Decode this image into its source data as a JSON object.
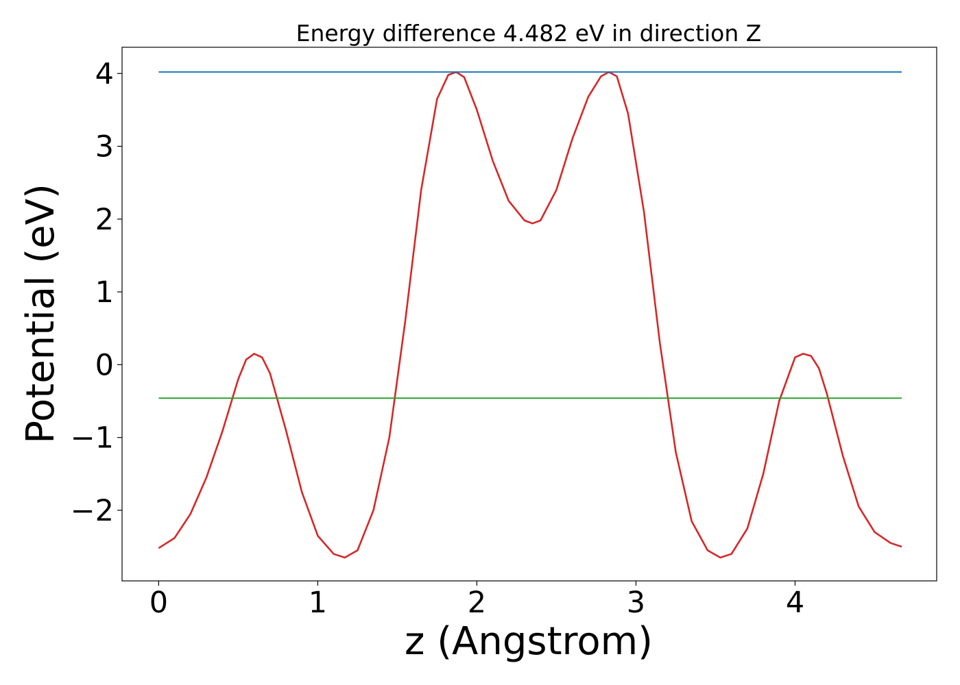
{
  "chart_data": {
    "type": "line",
    "title": "Energy difference 4.482 eV in direction Z",
    "xlabel": "z (Angstrom)",
    "ylabel": "Potential (eV)",
    "xlim": [
      -0.23,
      4.89
    ],
    "ylim": [
      -2.97,
      4.36
    ],
    "xticks": [
      0,
      1,
      2,
      3,
      4
    ],
    "xtick_labels": [
      "0",
      "1",
      "2",
      "3",
      "4"
    ],
    "yticks": [
      -2,
      -1,
      0,
      1,
      2,
      3,
      4
    ],
    "ytick_labels": [
      "−2",
      "−1",
      "0",
      "1",
      "2",
      "3",
      "4"
    ],
    "grid": false,
    "series": [
      {
        "color": "#d62728",
        "x": [
          0.0,
          0.1,
          0.2,
          0.3,
          0.4,
          0.5,
          0.55,
          0.6,
          0.65,
          0.7,
          0.8,
          0.9,
          1.0,
          1.1,
          1.17,
          1.25,
          1.35,
          1.45,
          1.55,
          1.65,
          1.75,
          1.82,
          1.87,
          1.92,
          2.0,
          2.1,
          2.2,
          2.3,
          2.35,
          2.4,
          2.5,
          2.6,
          2.7,
          2.78,
          2.83,
          2.88,
          2.95,
          3.05,
          3.15,
          3.25,
          3.35,
          3.45,
          3.53,
          3.6,
          3.7,
          3.8,
          3.9,
          4.0,
          4.05,
          4.1,
          4.15,
          4.2,
          4.3,
          4.4,
          4.5,
          4.6,
          4.67
        ],
        "y": [
          -2.52,
          -2.38,
          -2.05,
          -1.55,
          -0.92,
          -0.2,
          0.07,
          0.15,
          0.1,
          -0.12,
          -0.9,
          -1.75,
          -2.35,
          -2.6,
          -2.65,
          -2.55,
          -2.0,
          -1.0,
          0.6,
          2.4,
          3.65,
          3.98,
          4.02,
          3.95,
          3.5,
          2.8,
          2.25,
          1.98,
          1.94,
          1.98,
          2.4,
          3.1,
          3.68,
          3.96,
          4.02,
          3.96,
          3.45,
          2.1,
          0.3,
          -1.2,
          -2.15,
          -2.55,
          -2.65,
          -2.6,
          -2.25,
          -1.5,
          -0.5,
          0.1,
          0.15,
          0.12,
          -0.05,
          -0.4,
          -1.25,
          -1.95,
          -2.3,
          -2.45,
          -2.5
        ]
      },
      {
        "color": "#1f77b4",
        "x": [
          0.0,
          4.67
        ],
        "y": [
          4.02,
          4.02
        ]
      },
      {
        "color": "#2ca02c",
        "x": [
          0.0,
          4.67
        ],
        "y": [
          -0.46,
          -0.46
        ]
      }
    ]
  }
}
